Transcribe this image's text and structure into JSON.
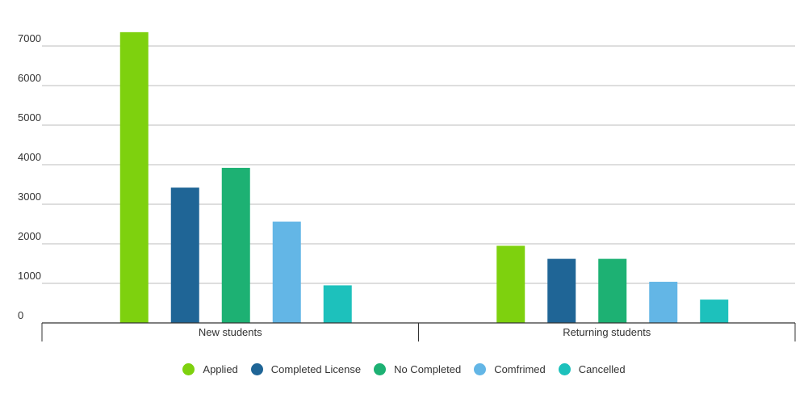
{
  "chart_data": {
    "type": "bar",
    "categories": [
      "New students",
      "Returning students"
    ],
    "series": [
      {
        "name": "Applied",
        "color": "#7ed10e",
        "values": [
          7350,
          1950
        ]
      },
      {
        "name": "Completed License",
        "color": "#1f6596",
        "values": [
          3420,
          1620
        ]
      },
      {
        "name": "No Completed",
        "color": "#1db173",
        "values": [
          3920,
          1620
        ]
      },
      {
        "name": "Comfrimed",
        "color": "#63b6e6",
        "values": [
          2560,
          1040
        ]
      },
      {
        "name": "Cancelled",
        "color": "#1dc1bc",
        "values": [
          950,
          590
        ]
      }
    ],
    "ylim": [
      0,
      7000
    ],
    "yticks": [
      0,
      1000,
      2000,
      3000,
      4000,
      5000,
      6000,
      7000
    ],
    "grid": true,
    "legend_position": "bottom-center"
  }
}
